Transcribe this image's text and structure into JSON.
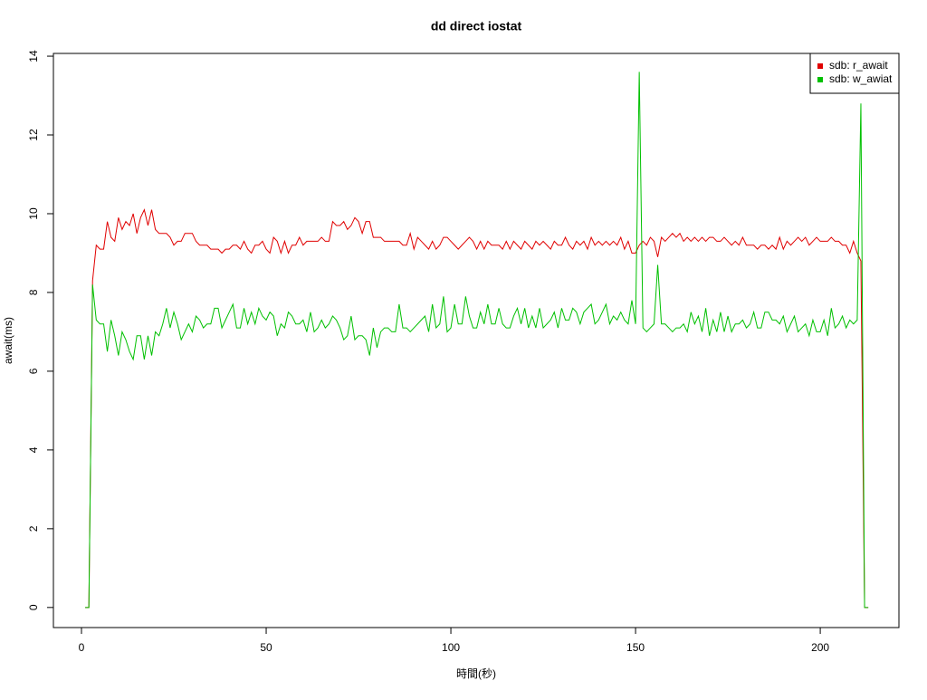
{
  "chart_data": {
    "type": "line",
    "title": "dd direct iostat",
    "xlabel": "時間(秒)",
    "ylabel": "await(ms)",
    "x": [
      1,
      2,
      3,
      4,
      5,
      6,
      7,
      8,
      9,
      10,
      11,
      12,
      13,
      14,
      15,
      16,
      17,
      18,
      19,
      20,
      21,
      22,
      23,
      24,
      25,
      26,
      27,
      28,
      29,
      30,
      31,
      32,
      33,
      34,
      35,
      36,
      37,
      38,
      39,
      40,
      41,
      42,
      43,
      44,
      45,
      46,
      47,
      48,
      49,
      50,
      51,
      52,
      53,
      54,
      55,
      56,
      57,
      58,
      59,
      60,
      61,
      62,
      63,
      64,
      65,
      66,
      67,
      68,
      69,
      70,
      71,
      72,
      73,
      74,
      75,
      76,
      77,
      78,
      79,
      80,
      81,
      82,
      83,
      84,
      85,
      86,
      87,
      88,
      89,
      90,
      91,
      92,
      93,
      94,
      95,
      96,
      97,
      98,
      99,
      100,
      101,
      102,
      103,
      104,
      105,
      106,
      107,
      108,
      109,
      110,
      111,
      112,
      113,
      114,
      115,
      116,
      117,
      118,
      119,
      120,
      121,
      122,
      123,
      124,
      125,
      126,
      127,
      128,
      129,
      130,
      131,
      132,
      133,
      134,
      135,
      136,
      137,
      138,
      139,
      140,
      141,
      142,
      143,
      144,
      145,
      146,
      147,
      148,
      149,
      150,
      151,
      152,
      153,
      154,
      155,
      156,
      157,
      158,
      159,
      160,
      161,
      162,
      163,
      164,
      165,
      166,
      167,
      168,
      169,
      170,
      171,
      172,
      173,
      174,
      175,
      176,
      177,
      178,
      179,
      180,
      181,
      182,
      183,
      184,
      185,
      186,
      187,
      188,
      189,
      190,
      191,
      192,
      193,
      194,
      195,
      196,
      197,
      198,
      199,
      200,
      201,
      202,
      203,
      204,
      205,
      206,
      207,
      208,
      209,
      210,
      211,
      212,
      213
    ],
    "series": [
      {
        "name": "sdb: r_await",
        "color": "#e00000",
        "values": [
          0,
          0,
          8.3,
          9.2,
          9.1,
          9.1,
          9.8,
          9.4,
          9.3,
          9.9,
          9.6,
          9.8,
          9.7,
          10.0,
          9.5,
          9.9,
          10.1,
          9.7,
          10.1,
          9.6,
          9.5,
          9.5,
          9.5,
          9.4,
          9.2,
          9.3,
          9.3,
          9.5,
          9.5,
          9.5,
          9.3,
          9.2,
          9.2,
          9.2,
          9.1,
          9.1,
          9.1,
          9.0,
          9.1,
          9.1,
          9.2,
          9.2,
          9.1,
          9.3,
          9.1,
          9.0,
          9.2,
          9.2,
          9.3,
          9.1,
          9.0,
          9.4,
          9.3,
          9.0,
          9.3,
          9.0,
          9.2,
          9.2,
          9.4,
          9.2,
          9.3,
          9.3,
          9.3,
          9.3,
          9.4,
          9.3,
          9.3,
          9.8,
          9.7,
          9.7,
          9.8,
          9.6,
          9.7,
          9.9,
          9.8,
          9.5,
          9.8,
          9.8,
          9.4,
          9.4,
          9.4,
          9.3,
          9.3,
          9.3,
          9.3,
          9.3,
          9.2,
          9.2,
          9.5,
          9.1,
          9.4,
          9.3,
          9.2,
          9.1,
          9.3,
          9.1,
          9.2,
          9.4,
          9.4,
          9.3,
          9.2,
          9.1,
          9.2,
          9.3,
          9.4,
          9.3,
          9.1,
          9.3,
          9.1,
          9.3,
          9.2,
          9.2,
          9.2,
          9.1,
          9.3,
          9.1,
          9.3,
          9.2,
          9.1,
          9.3,
          9.2,
          9.1,
          9.3,
          9.2,
          9.3,
          9.2,
          9.1,
          9.3,
          9.2,
          9.2,
          9.4,
          9.2,
          9.1,
          9.3,
          9.2,
          9.3,
          9.1,
          9.4,
          9.2,
          9.3,
          9.2,
          9.3,
          9.2,
          9.3,
          9.2,
          9.4,
          9.1,
          9.3,
          9.0,
          9.0,
          9.2,
          9.3,
          9.2,
          9.4,
          9.3,
          8.9,
          9.4,
          9.3,
          9.4,
          9.5,
          9.4,
          9.5,
          9.3,
          9.4,
          9.3,
          9.4,
          9.3,
          9.4,
          9.3,
          9.4,
          9.4,
          9.3,
          9.3,
          9.4,
          9.3,
          9.2,
          9.3,
          9.2,
          9.4,
          9.2,
          9.2,
          9.2,
          9.1,
          9.2,
          9.2,
          9.1,
          9.2,
          9.1,
          9.4,
          9.1,
          9.3,
          9.2,
          9.3,
          9.4,
          9.3,
          9.4,
          9.2,
          9.3,
          9.4,
          9.3,
          9.3,
          9.3,
          9.4,
          9.3,
          9.3,
          9.2,
          9.2,
          9.0,
          9.3,
          9.0,
          8.8,
          0,
          0
        ]
      },
      {
        "name": "sdb: w_awiat",
        "color": "#00c000",
        "values": [
          0,
          0,
          8.2,
          7.3,
          7.2,
          7.2,
          6.5,
          7.3,
          6.9,
          6.4,
          7.0,
          6.8,
          6.5,
          6.3,
          6.9,
          6.9,
          6.3,
          6.9,
          6.4,
          7.0,
          6.9,
          7.2,
          7.6,
          7.1,
          7.5,
          7.2,
          6.8,
          7.0,
          7.2,
          7.0,
          7.4,
          7.3,
          7.1,
          7.2,
          7.2,
          7.6,
          7.6,
          7.1,
          7.3,
          7.5,
          7.7,
          7.1,
          7.1,
          7.6,
          7.2,
          7.5,
          7.2,
          7.6,
          7.4,
          7.3,
          7.5,
          7.4,
          6.9,
          7.2,
          7.1,
          7.5,
          7.4,
          7.2,
          7.2,
          7.3,
          7.0,
          7.5,
          7.0,
          7.1,
          7.3,
          7.1,
          7.2,
          7.4,
          7.3,
          7.1,
          6.8,
          6.9,
          7.4,
          6.8,
          6.9,
          6.9,
          6.8,
          6.4,
          7.1,
          6.6,
          7.0,
          7.1,
          7.1,
          7.0,
          7.0,
          7.7,
          7.1,
          7.1,
          7.0,
          7.1,
          7.2,
          7.3,
          7.4,
          7.0,
          7.7,
          7.1,
          7.2,
          7.9,
          7.0,
          7.1,
          7.7,
          7.2,
          7.2,
          7.9,
          7.4,
          7.1,
          7.1,
          7.5,
          7.2,
          7.7,
          7.2,
          7.2,
          7.6,
          7.2,
          7.1,
          7.1,
          7.4,
          7.6,
          7.2,
          7.6,
          7.1,
          7.4,
          7.1,
          7.6,
          7.1,
          7.2,
          7.3,
          7.5,
          7.1,
          7.6,
          7.3,
          7.3,
          7.6,
          7.5,
          7.2,
          7.5,
          7.6,
          7.7,
          7.2,
          7.3,
          7.5,
          7.7,
          7.2,
          7.4,
          7.3,
          7.5,
          7.3,
          7.2,
          7.8,
          7.2,
          13.6,
          7.1,
          7.0,
          7.1,
          7.2,
          8.7,
          7.2,
          7.2,
          7.1,
          7.0,
          7.1,
          7.1,
          7.2,
          7.0,
          7.5,
          7.2,
          7.4,
          7.0,
          7.6,
          6.9,
          7.3,
          7.0,
          7.5,
          7.0,
          7.4,
          7.0,
          7.2,
          7.2,
          7.3,
          7.1,
          7.2,
          7.5,
          7.1,
          7.1,
          7.5,
          7.5,
          7.3,
          7.3,
          7.2,
          7.4,
          7.0,
          7.2,
          7.4,
          7.0,
          7.1,
          7.2,
          6.9,
          7.3,
          7.0,
          7.0,
          7.3,
          6.9,
          7.6,
          7.1,
          7.2,
          7.4,
          7.1,
          7.3,
          7.2,
          7.3,
          12.8,
          0,
          0
        ]
      }
    ],
    "xlim": [
      -7.6,
      221.3
    ],
    "ylim": [
      -0.51,
      14.07
    ],
    "xticks": [
      0,
      50,
      100,
      150,
      200
    ],
    "yticks": [
      0,
      2,
      4,
      6,
      8,
      10,
      12,
      14
    ],
    "legend": "topright"
  }
}
